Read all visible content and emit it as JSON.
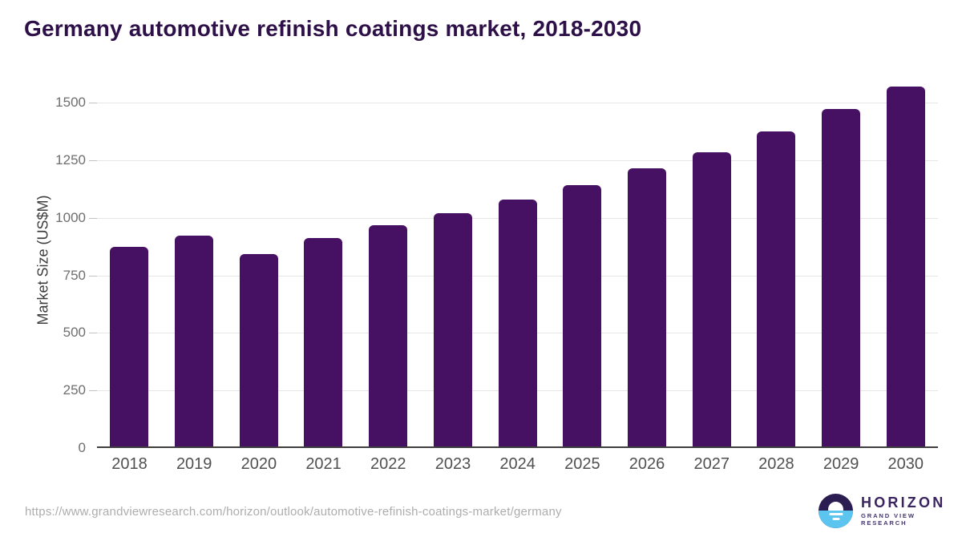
{
  "title": "Germany automotive refinish coatings market, 2018-2030",
  "colors": {
    "bar": "#471163",
    "title": "#2e1048",
    "gridline": "#e6e6e6",
    "axis_line": "#3f3f3f",
    "logo_dark_purple": "#2b1d52",
    "logo_light_blue": "#5bc4ef"
  },
  "chart_data": {
    "type": "bar",
    "title": "Germany automotive refinish coatings market, 2018-2030",
    "categories": [
      "2018",
      "2019",
      "2020",
      "2021",
      "2022",
      "2023",
      "2024",
      "2025",
      "2026",
      "2027",
      "2028",
      "2029",
      "2030"
    ],
    "values": [
      865,
      915,
      834,
      906,
      960,
      1013,
      1071,
      1136,
      1206,
      1277,
      1368,
      1464,
      1564
    ],
    "xlabel": "",
    "ylabel": "Market Size (US$M)",
    "yticks": [
      0,
      250,
      500,
      750,
      1000,
      1250,
      1500
    ],
    "ylim": [
      0,
      1608
    ],
    "grid": true,
    "legend_position": "none"
  },
  "footer": {
    "source_url": "https://www.grandviewresearch.com/horizon/outlook/automotive-refinish-coatings-market/germany",
    "logo": {
      "name": "HORIZON",
      "tagline": "GRAND VIEW RESEARCH",
      "mark": "sunset-over-water-icon"
    }
  }
}
